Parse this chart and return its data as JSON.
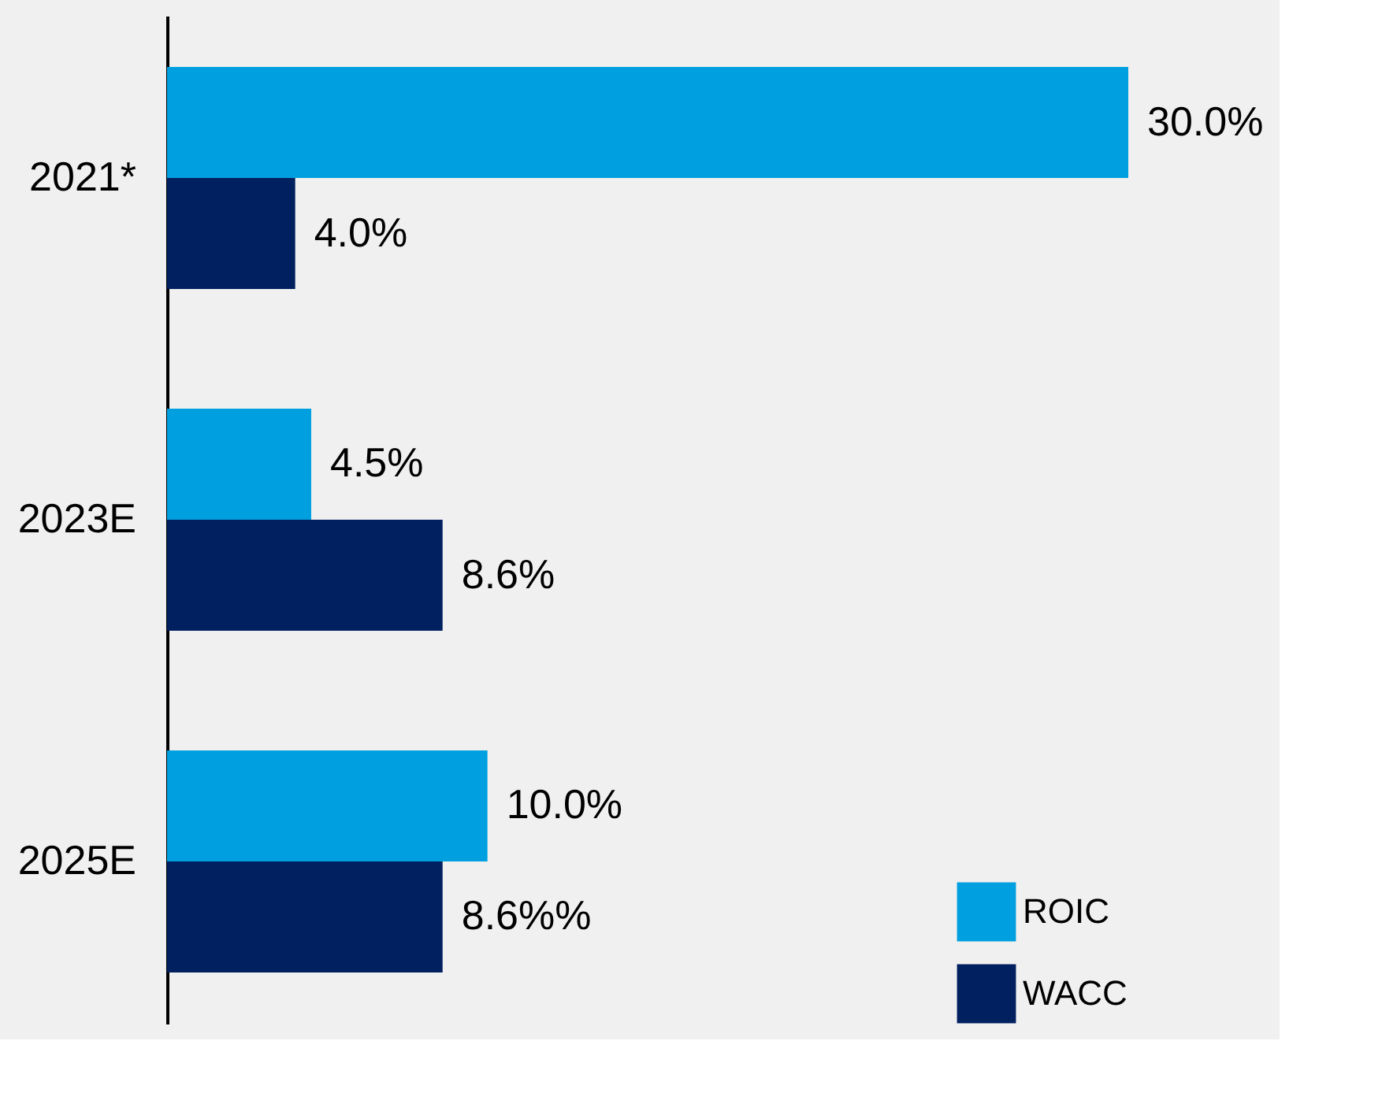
{
  "chart_data": {
    "type": "bar",
    "orientation": "horizontal",
    "categories": [
      "2021*",
      "2023E",
      "2025E"
    ],
    "series": [
      {
        "name": "ROIC",
        "color": "#00a0e0",
        "values": [
          30.0,
          4.5,
          10.0
        ],
        "value_labels": [
          "30.0%",
          "4.5%",
          "10.0%"
        ]
      },
      {
        "name": "WACC",
        "color": "#002060",
        "values": [
          4.0,
          8.6,
          8.6
        ],
        "value_labels": [
          "4.0%",
          "8.6%",
          "8.6%%"
        ]
      }
    ],
    "legend": "bottom right",
    "grid": false,
    "tick_labels": "y"
  }
}
